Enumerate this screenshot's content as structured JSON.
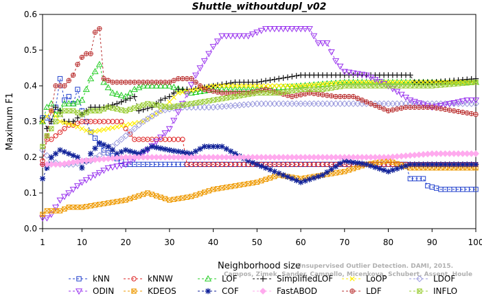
{
  "chart_data": {
    "type": "line",
    "title": "Shuttle_withoutdupl_v02",
    "xlabel": "Neighborhood size",
    "ylabel": "Maximum F1",
    "xlim": [
      1,
      100
    ],
    "ylim": [
      0.0,
      0.6
    ],
    "xticks": [
      1,
      10,
      20,
      30,
      40,
      50,
      60,
      70,
      80,
      90,
      100
    ],
    "yticks": [
      0.0,
      0.1,
      0.2,
      0.3,
      0.4,
      0.5,
      0.6
    ],
    "grid": false,
    "legend_position": "bottom",
    "watermark": [
      "Campos, Zimek, Sander, Campello, Micenkova, Schubert, Assent, Houle",
      "Unsupervised Outlier Detection. DAMI, 2015."
    ],
    "series": [
      {
        "name": "kNN",
        "color": "#1f3fcc",
        "marker": "square",
        "points": [
          [
            1,
            0.31
          ],
          [
            2,
            0.31
          ],
          [
            3,
            0.3
          ],
          [
            4,
            0.34
          ],
          [
            5,
            0.42
          ],
          [
            6,
            0.36
          ],
          [
            7,
            0.37
          ],
          [
            8,
            0.35
          ],
          [
            9,
            0.39
          ],
          [
            10,
            0.33
          ],
          [
            12,
            0.27
          ],
          [
            15,
            0.22
          ],
          [
            20,
            0.18
          ],
          [
            30,
            0.18
          ],
          [
            40,
            0.18
          ],
          [
            50,
            0.18
          ],
          [
            60,
            0.18
          ],
          [
            70,
            0.18
          ],
          [
            80,
            0.18
          ],
          [
            84,
            0.18
          ],
          [
            85,
            0.14
          ],
          [
            88,
            0.14
          ],
          [
            89,
            0.12
          ],
          [
            92,
            0.11
          ],
          [
            100,
            0.11
          ]
        ]
      },
      {
        "name": "kNNW",
        "color": "#dd2222",
        "marker": "circle",
        "points": [
          [
            1,
            0.19
          ],
          [
            2,
            0.25
          ],
          [
            3,
            0.25
          ],
          [
            4,
            0.26
          ],
          [
            5,
            0.27
          ],
          [
            6,
            0.28
          ],
          [
            7,
            0.29
          ],
          [
            8,
            0.29
          ],
          [
            10,
            0.3
          ],
          [
            15,
            0.3
          ],
          [
            19,
            0.3
          ],
          [
            20,
            0.28
          ],
          [
            22,
            0.25
          ],
          [
            24,
            0.25
          ],
          [
            27,
            0.25
          ],
          [
            33,
            0.25
          ],
          [
            34,
            0.18
          ],
          [
            50,
            0.18
          ],
          [
            70,
            0.18
          ],
          [
            100,
            0.18
          ]
        ]
      },
      {
        "name": "LOF",
        "color": "#22cc22",
        "marker": "triangle-up",
        "points": [
          [
            1,
            0.3
          ],
          [
            2,
            0.34
          ],
          [
            3,
            0.35
          ],
          [
            4,
            0.32
          ],
          [
            5,
            0.33
          ],
          [
            6,
            0.35
          ],
          [
            8,
            0.35
          ],
          [
            10,
            0.36
          ],
          [
            12,
            0.42
          ],
          [
            13,
            0.44
          ],
          [
            14,
            0.46
          ],
          [
            15,
            0.41
          ],
          [
            17,
            0.38
          ],
          [
            20,
            0.37
          ],
          [
            22,
            0.39
          ],
          [
            24,
            0.4
          ],
          [
            30,
            0.4
          ],
          [
            35,
            0.38
          ],
          [
            40,
            0.39
          ],
          [
            50,
            0.39
          ],
          [
            60,
            0.4
          ],
          [
            70,
            0.41
          ],
          [
            80,
            0.41
          ],
          [
            90,
            0.41
          ],
          [
            100,
            0.41
          ]
        ]
      },
      {
        "name": "SimplifiedLOF",
        "color": "#111111",
        "marker": "plus",
        "points": [
          [
            1,
            0.31
          ],
          [
            2,
            0.28
          ],
          [
            3,
            0.3
          ],
          [
            4,
            0.34
          ],
          [
            5,
            0.33
          ],
          [
            6,
            0.3
          ],
          [
            8,
            0.3
          ],
          [
            10,
            0.32
          ],
          [
            12,
            0.34
          ],
          [
            15,
            0.34
          ],
          [
            18,
            0.35
          ],
          [
            20,
            0.36
          ],
          [
            22,
            0.37
          ],
          [
            23,
            0.33
          ],
          [
            26,
            0.34
          ],
          [
            28,
            0.36
          ],
          [
            30,
            0.37
          ],
          [
            32,
            0.39
          ],
          [
            35,
            0.39
          ],
          [
            40,
            0.4
          ],
          [
            45,
            0.41
          ],
          [
            50,
            0.41
          ],
          [
            55,
            0.42
          ],
          [
            60,
            0.43
          ],
          [
            70,
            0.43
          ],
          [
            80,
            0.43
          ],
          [
            85,
            0.43
          ],
          [
            86,
            0.41
          ],
          [
            90,
            0.41
          ],
          [
            100,
            0.42
          ]
        ]
      },
      {
        "name": "LoOP",
        "color": "#ffee00",
        "marker": "x",
        "points": [
          [
            1,
            0.3
          ],
          [
            3,
            0.33
          ],
          [
            5,
            0.3
          ],
          [
            8,
            0.29
          ],
          [
            12,
            0.27
          ],
          [
            16,
            0.28
          ],
          [
            20,
            0.29
          ],
          [
            24,
            0.3
          ],
          [
            28,
            0.33
          ],
          [
            32,
            0.38
          ],
          [
            36,
            0.39
          ],
          [
            40,
            0.4
          ],
          [
            50,
            0.4
          ],
          [
            60,
            0.4
          ],
          [
            70,
            0.41
          ],
          [
            80,
            0.41
          ],
          [
            90,
            0.41
          ],
          [
            100,
            0.41
          ]
        ]
      },
      {
        "name": "LDOF",
        "color": "#9999dd",
        "marker": "diamond",
        "points": [
          [
            1,
            0.22
          ],
          [
            3,
            0.19
          ],
          [
            5,
            0.18
          ],
          [
            8,
            0.18
          ],
          [
            12,
            0.19
          ],
          [
            16,
            0.22
          ],
          [
            20,
            0.26
          ],
          [
            24,
            0.3
          ],
          [
            28,
            0.33
          ],
          [
            32,
            0.34
          ],
          [
            40,
            0.34
          ],
          [
            50,
            0.35
          ],
          [
            60,
            0.35
          ],
          [
            70,
            0.35
          ],
          [
            80,
            0.35
          ],
          [
            90,
            0.35
          ],
          [
            100,
            0.35
          ]
        ]
      },
      {
        "name": "ODIN",
        "color": "#9933ee",
        "marker": "triangle-down",
        "points": [
          [
            1,
            0.03
          ],
          [
            2,
            0.03
          ],
          [
            3,
            0.04
          ],
          [
            4,
            0.06
          ],
          [
            5,
            0.08
          ],
          [
            7,
            0.1
          ],
          [
            10,
            0.13
          ],
          [
            13,
            0.15
          ],
          [
            16,
            0.17
          ],
          [
            20,
            0.18
          ],
          [
            25,
            0.22
          ],
          [
            30,
            0.28
          ],
          [
            33,
            0.35
          ],
          [
            36,
            0.43
          ],
          [
            38,
            0.47
          ],
          [
            40,
            0.51
          ],
          [
            42,
            0.54
          ],
          [
            48,
            0.54
          ],
          [
            52,
            0.56
          ],
          [
            62,
            0.56
          ],
          [
            64,
            0.52
          ],
          [
            66,
            0.52
          ],
          [
            68,
            0.47
          ],
          [
            70,
            0.44
          ],
          [
            75,
            0.43
          ],
          [
            80,
            0.4
          ],
          [
            85,
            0.36
          ],
          [
            90,
            0.34
          ],
          [
            94,
            0.35
          ],
          [
            98,
            0.36
          ],
          [
            100,
            0.36
          ]
        ]
      },
      {
        "name": "KDEOS",
        "color": "#ee9900",
        "marker": "square-x",
        "points": [
          [
            1,
            0.04
          ],
          [
            2,
            0.05
          ],
          [
            3,
            0.05
          ],
          [
            5,
            0.05
          ],
          [
            7,
            0.06
          ],
          [
            10,
            0.06
          ],
          [
            15,
            0.07
          ],
          [
            20,
            0.08
          ],
          [
            25,
            0.1
          ],
          [
            30,
            0.08
          ],
          [
            35,
            0.09
          ],
          [
            40,
            0.11
          ],
          [
            45,
            0.12
          ],
          [
            50,
            0.13
          ],
          [
            55,
            0.15
          ],
          [
            60,
            0.14
          ],
          [
            65,
            0.15
          ],
          [
            70,
            0.16
          ],
          [
            75,
            0.18
          ],
          [
            80,
            0.19
          ],
          [
            85,
            0.17
          ],
          [
            90,
            0.17
          ],
          [
            100,
            0.17
          ]
        ]
      },
      {
        "name": "COF",
        "color": "#112299",
        "marker": "star",
        "points": [
          [
            1,
            0.14
          ],
          [
            2,
            0.17
          ],
          [
            3,
            0.2
          ],
          [
            4,
            0.21
          ],
          [
            5,
            0.22
          ],
          [
            7,
            0.21
          ],
          [
            9,
            0.2
          ],
          [
            10,
            0.17
          ],
          [
            12,
            0.21
          ],
          [
            14,
            0.24
          ],
          [
            16,
            0.23
          ],
          [
            18,
            0.21
          ],
          [
            20,
            0.22
          ],
          [
            23,
            0.21
          ],
          [
            26,
            0.23
          ],
          [
            30,
            0.22
          ],
          [
            35,
            0.21
          ],
          [
            38,
            0.23
          ],
          [
            42,
            0.23
          ],
          [
            45,
            0.21
          ],
          [
            48,
            0.19
          ],
          [
            52,
            0.17
          ],
          [
            56,
            0.15
          ],
          [
            60,
            0.13
          ],
          [
            65,
            0.15
          ],
          [
            70,
            0.19
          ],
          [
            75,
            0.18
          ],
          [
            80,
            0.16
          ],
          [
            85,
            0.18
          ],
          [
            90,
            0.18
          ],
          [
            100,
            0.18
          ]
        ]
      },
      {
        "name": "FastABOD",
        "color": "#ffaaee",
        "marker": "diamond-filled",
        "points": [
          [
            1,
            0.18
          ],
          [
            5,
            0.18
          ],
          [
            10,
            0.19
          ],
          [
            20,
            0.2
          ],
          [
            30,
            0.2
          ],
          [
            40,
            0.2
          ],
          [
            50,
            0.2
          ],
          [
            60,
            0.2
          ],
          [
            70,
            0.2
          ],
          [
            80,
            0.2
          ],
          [
            90,
            0.21
          ],
          [
            100,
            0.21
          ]
        ]
      },
      {
        "name": "LDF",
        "color": "#bb3333",
        "marker": "circle-plus",
        "points": [
          [
            1,
            0.18
          ],
          [
            2,
            0.26
          ],
          [
            3,
            0.33
          ],
          [
            4,
            0.4
          ],
          [
            5,
            0.4
          ],
          [
            6,
            0.4
          ],
          [
            8,
            0.43
          ],
          [
            9,
            0.46
          ],
          [
            10,
            0.48
          ],
          [
            11,
            0.49
          ],
          [
            12,
            0.49
          ],
          [
            13,
            0.55
          ],
          [
            14,
            0.56
          ],
          [
            15,
            0.42
          ],
          [
            17,
            0.41
          ],
          [
            20,
            0.41
          ],
          [
            25,
            0.41
          ],
          [
            30,
            0.41
          ],
          [
            32,
            0.42
          ],
          [
            35,
            0.42
          ],
          [
            38,
            0.39
          ],
          [
            42,
            0.38
          ],
          [
            48,
            0.38
          ],
          [
            52,
            0.39
          ],
          [
            58,
            0.37
          ],
          [
            62,
            0.38
          ],
          [
            68,
            0.37
          ],
          [
            72,
            0.37
          ],
          [
            76,
            0.35
          ],
          [
            80,
            0.33
          ],
          [
            84,
            0.34
          ],
          [
            90,
            0.34
          ],
          [
            95,
            0.33
          ],
          [
            100,
            0.32
          ]
        ]
      },
      {
        "name": "INFLO",
        "color": "#99cc33",
        "marker": "square-x",
        "points": [
          [
            1,
            0.23
          ],
          [
            2,
            0.26
          ],
          [
            3,
            0.28
          ],
          [
            5,
            0.32
          ],
          [
            6,
            0.33
          ],
          [
            8,
            0.33
          ],
          [
            10,
            0.32
          ],
          [
            12,
            0.33
          ],
          [
            14,
            0.33
          ],
          [
            16,
            0.34
          ],
          [
            20,
            0.33
          ],
          [
            25,
            0.35
          ],
          [
            30,
            0.34
          ],
          [
            35,
            0.35
          ],
          [
            40,
            0.36
          ],
          [
            45,
            0.37
          ],
          [
            50,
            0.38
          ],
          [
            55,
            0.38
          ],
          [
            60,
            0.39
          ],
          [
            65,
            0.39
          ],
          [
            70,
            0.4
          ],
          [
            75,
            0.4
          ],
          [
            80,
            0.4
          ],
          [
            85,
            0.4
          ],
          [
            90,
            0.4
          ],
          [
            100,
            0.41
          ]
        ]
      }
    ]
  }
}
